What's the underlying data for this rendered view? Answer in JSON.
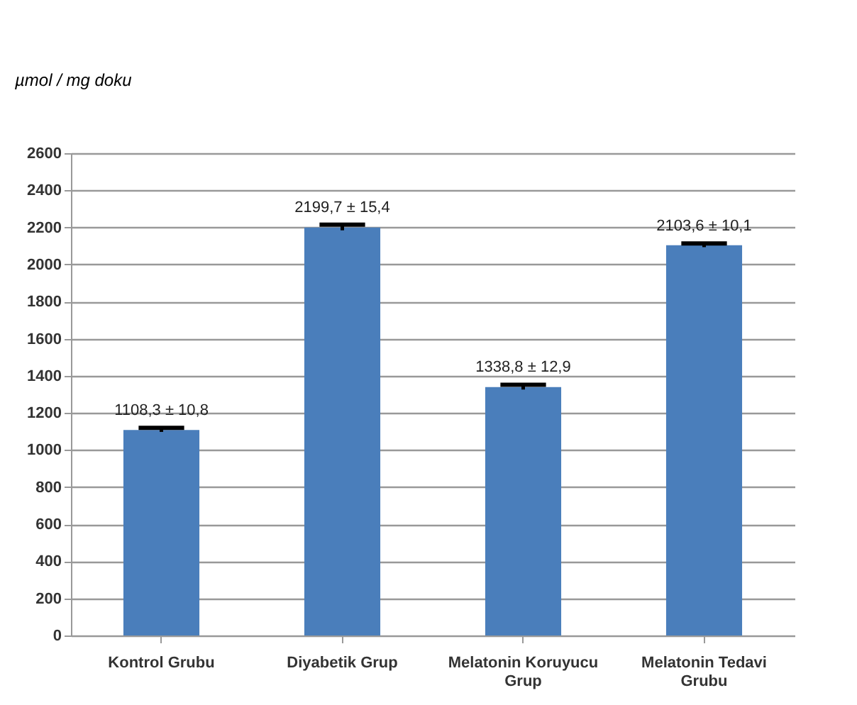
{
  "chart_data": {
    "type": "bar",
    "ylabel": "µmol / mg doku",
    "categories": [
      "Kontrol Grubu",
      "Diyabetik Grup",
      "Melatonin Koruyucu Grup",
      "Melatonin Tedavi Grubu"
    ],
    "values": [
      1108.3,
      2199.7,
      1338.8,
      2103.6
    ],
    "errors": [
      10.8,
      15.4,
      12.9,
      10.1
    ],
    "value_labels": [
      "1108,3 ± 10,8",
      "2199,7 ± 15,4",
      "1338,8 ± 12,9",
      "2103,6 ± 10,1"
    ],
    "color": "#4a7ebb",
    "ylim": [
      0,
      2600
    ],
    "yticks": [
      0,
      200,
      400,
      600,
      800,
      1000,
      1200,
      1400,
      1600,
      1800,
      2000,
      2200,
      2400,
      2600
    ],
    "grid": "y"
  }
}
